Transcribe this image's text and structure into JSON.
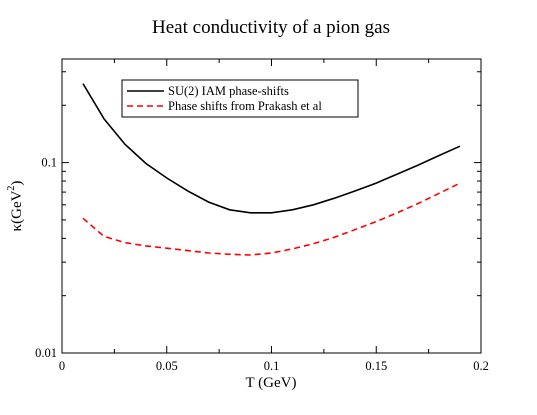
{
  "chart_data": {
    "type": "line",
    "title": "Heat conductivity of a pion gas",
    "xlabel": "T (GeV)",
    "ylabel": "κ(GeV²)",
    "ylabel_parts": {
      "base": "κ(GeV",
      "sup": "2",
      "close": ")"
    },
    "x_ticks": [
      {
        "value": 0,
        "label": "0"
      },
      {
        "value": 0.05,
        "label": "0.05"
      },
      {
        "value": 0.1,
        "label": "0.1"
      },
      {
        "value": 0.15,
        "label": "0.15"
      },
      {
        "value": 0.2,
        "label": "0.2"
      }
    ],
    "y_ticks": [
      {
        "value": 0.01,
        "label": "0.01"
      },
      {
        "value": 0.1,
        "label": "0.1"
      }
    ],
    "xlim": [
      0,
      0.2
    ],
    "ylim": [
      0.01,
      0.35
    ],
    "yscale": "log",
    "grid": false,
    "legend_position": "top-left",
    "series": [
      {
        "name": "SU(2) IAM phase-shifts",
        "color": "#000000",
        "dash": "solid",
        "x": [
          0.01,
          0.02,
          0.03,
          0.04,
          0.05,
          0.06,
          0.07,
          0.08,
          0.09,
          0.1,
          0.11,
          0.12,
          0.13,
          0.14,
          0.15,
          0.16,
          0.17,
          0.18,
          0.19
        ],
        "y": [
          0.26,
          0.17,
          0.125,
          0.099,
          0.083,
          0.071,
          0.062,
          0.0565,
          0.0545,
          0.0545,
          0.0565,
          0.06,
          0.065,
          0.071,
          0.078,
          0.087,
          0.097,
          0.109,
          0.122
        ]
      },
      {
        "name": "Phase shifts from Prakash et al",
        "color": "#ff0000",
        "dash": "dashed",
        "x": [
          0.01,
          0.02,
          0.03,
          0.04,
          0.05,
          0.06,
          0.07,
          0.08,
          0.09,
          0.1,
          0.11,
          0.12,
          0.13,
          0.14,
          0.15,
          0.16,
          0.17,
          0.18,
          0.19
        ],
        "y": [
          0.051,
          0.041,
          0.038,
          0.0365,
          0.0355,
          0.0345,
          0.0335,
          0.033,
          0.0327,
          0.0335,
          0.0352,
          0.0375,
          0.0405,
          0.0445,
          0.049,
          0.0545,
          0.061,
          0.069,
          0.078
        ]
      }
    ]
  }
}
